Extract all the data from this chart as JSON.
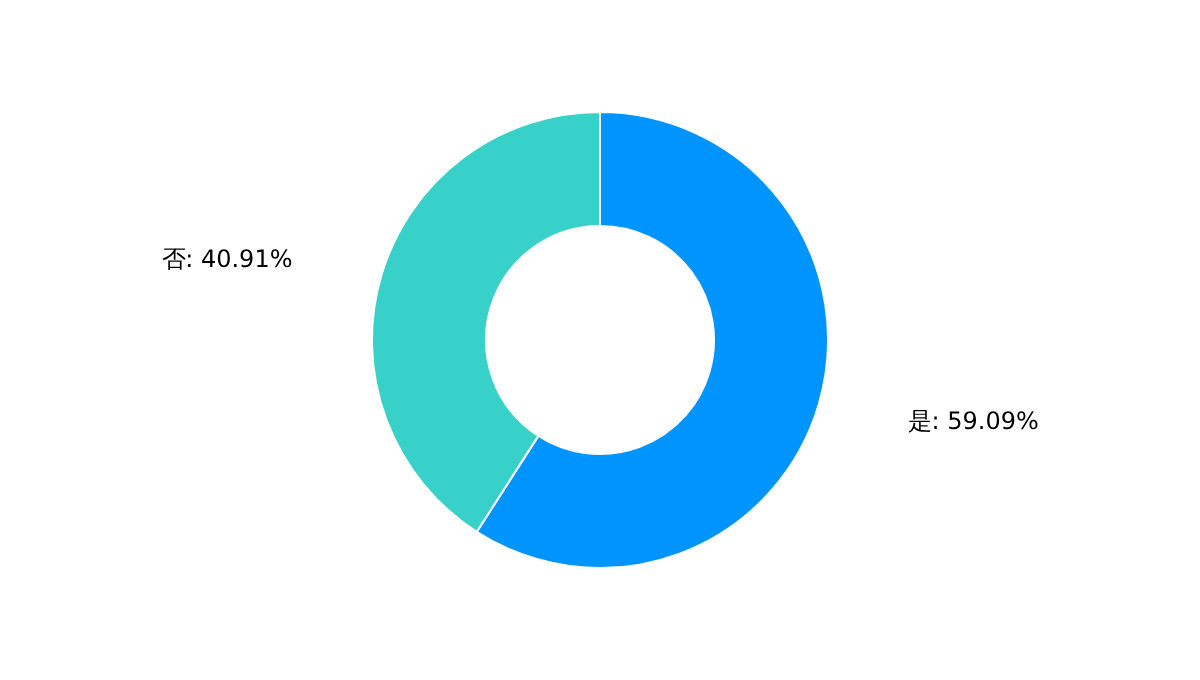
{
  "chart_data": {
    "type": "donut",
    "categories": [
      "是",
      "否"
    ],
    "values": [
      59.09,
      40.91
    ],
    "colors": [
      "#0094ff",
      "#37d1c9"
    ],
    "value_labels": [
      ": 59.09%",
      ": 40.91%"
    ]
  }
}
